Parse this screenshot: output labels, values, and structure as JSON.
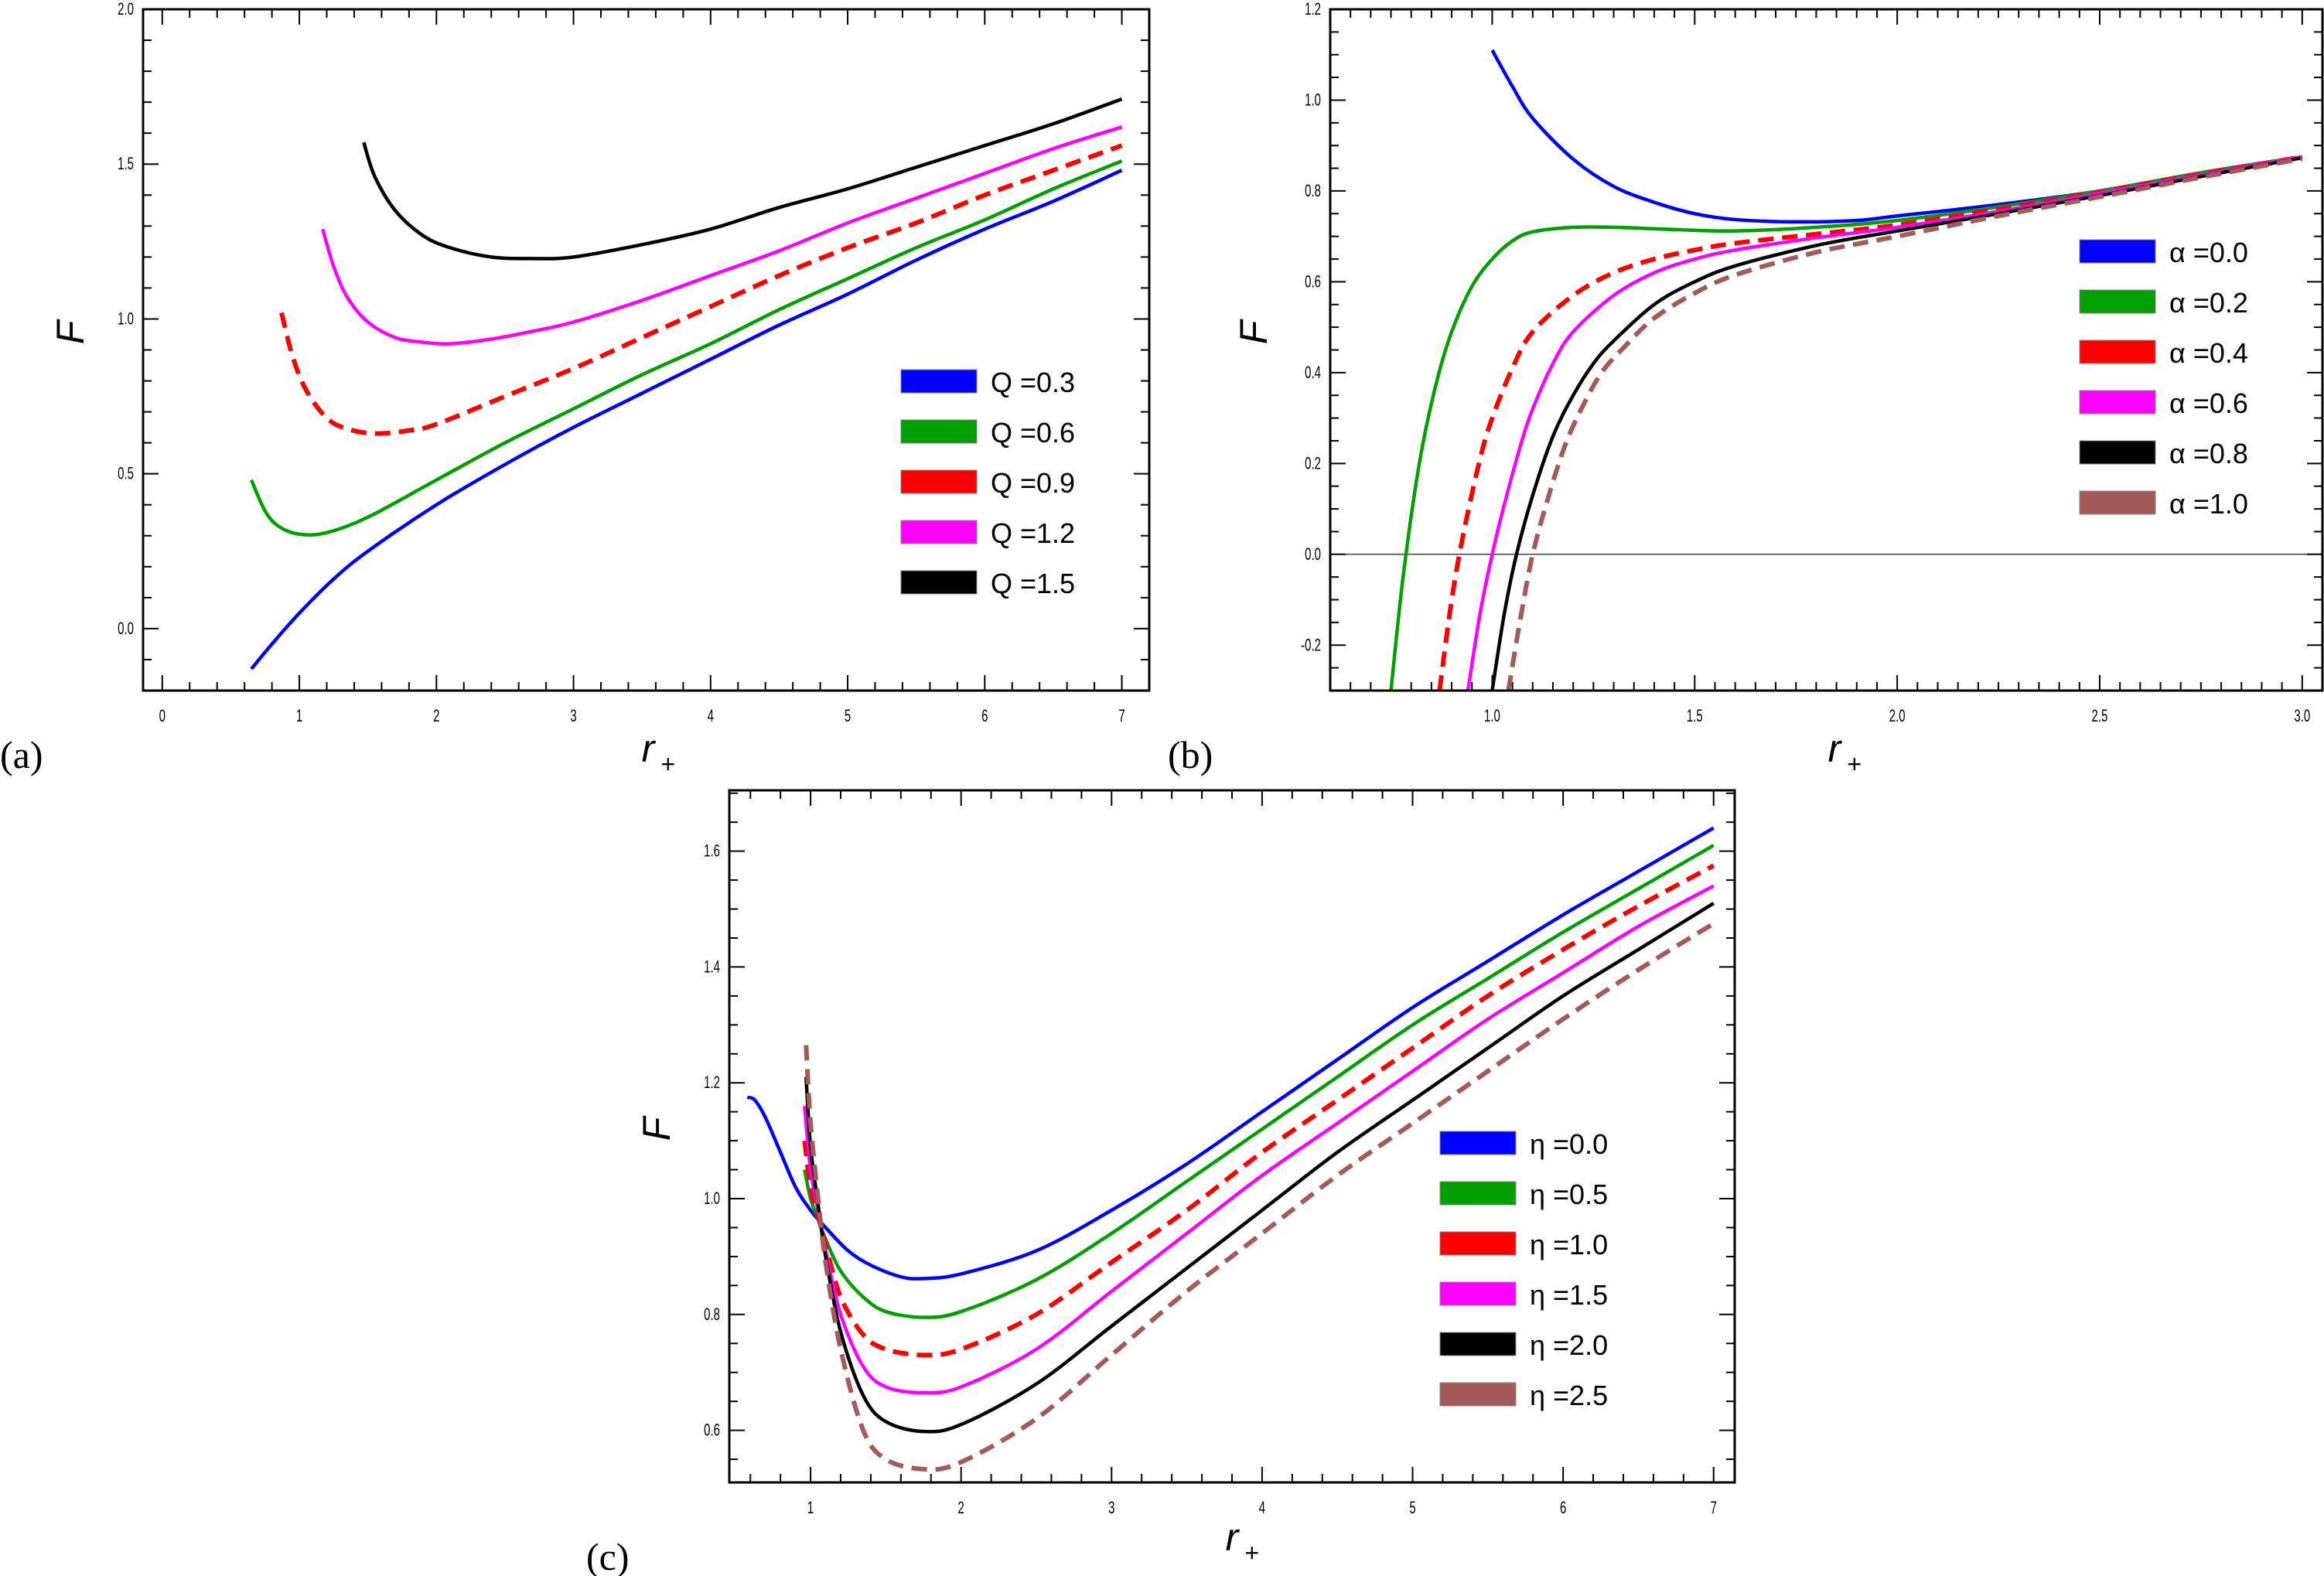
{
  "chart_data": [
    {
      "id": "a",
      "panel_label": "(a)",
      "type": "line",
      "xlabel": "r+",
      "ylabel": "F",
      "xlim": [
        -0.14,
        7.2
      ],
      "ylim": [
        -0.2,
        2.0
      ],
      "xticks": [
        0,
        1,
        2,
        3,
        4,
        5,
        6,
        7
      ],
      "xtick_labels": [
        "0",
        "1",
        "2",
        "3",
        "4",
        "5",
        "6",
        "7"
      ],
      "yticks": [
        0.0,
        0.5,
        1.0,
        1.5,
        2.0
      ],
      "ytick_labels": [
        "0.0",
        "0.5",
        "1.0",
        "1.5",
        "2.0"
      ],
      "legend_position": "center-right",
      "series": [
        {
          "name": "Q =0.3",
          "color": "#0000ff",
          "dashed": false,
          "x": [
            0.65,
            0.8,
            1.0,
            1.25,
            1.5,
            2.0,
            2.5,
            3.0,
            3.5,
            4.0,
            4.5,
            5.0,
            5.5,
            6.0,
            6.5,
            7.0
          ],
          "y": [
            -0.13,
            -0.05,
            0.05,
            0.16,
            0.25,
            0.4,
            0.53,
            0.65,
            0.76,
            0.87,
            0.98,
            1.08,
            1.19,
            1.29,
            1.38,
            1.48
          ]
        },
        {
          "name": "Q =0.6",
          "color": "#00a000",
          "dashed": false,
          "x": [
            0.65,
            0.75,
            0.85,
            1.0,
            1.2,
            1.5,
            2.0,
            2.5,
            3.0,
            3.5,
            4.0,
            4.5,
            5.0,
            5.5,
            6.0,
            6.5,
            7.0
          ],
          "y": [
            0.48,
            0.38,
            0.33,
            0.305,
            0.31,
            0.36,
            0.48,
            0.6,
            0.71,
            0.82,
            0.92,
            1.03,
            1.13,
            1.23,
            1.32,
            1.42,
            1.51
          ]
        },
        {
          "name": "Q =0.9",
          "color": "#ff0000",
          "dashed": true,
          "x": [
            0.87,
            0.95,
            1.05,
            1.2,
            1.35,
            1.55,
            1.8,
            2.0,
            2.5,
            3.0,
            3.5,
            4.0,
            4.5,
            5.0,
            5.5,
            6.0,
            6.5,
            7.0
          ],
          "y": [
            1.02,
            0.88,
            0.77,
            0.68,
            0.645,
            0.63,
            0.64,
            0.66,
            0.75,
            0.84,
            0.94,
            1.04,
            1.14,
            1.23,
            1.31,
            1.4,
            1.48,
            1.56
          ]
        },
        {
          "name": "Q =1.2",
          "color": "#ff00ff",
          "dashed": false,
          "x": [
            1.17,
            1.25,
            1.35,
            1.5,
            1.7,
            1.9,
            2.1,
            2.4,
            2.7,
            3.0,
            3.5,
            4.0,
            4.5,
            5.0,
            5.5,
            6.0,
            6.5,
            7.0
          ],
          "y": [
            1.29,
            1.17,
            1.07,
            0.99,
            0.94,
            0.925,
            0.92,
            0.935,
            0.96,
            0.99,
            1.06,
            1.14,
            1.22,
            1.31,
            1.39,
            1.47,
            1.55,
            1.62
          ]
        },
        {
          "name": "Q =1.5",
          "color": "#000000",
          "dashed": false,
          "x": [
            1.47,
            1.55,
            1.7,
            1.9,
            2.1,
            2.4,
            2.7,
            3.0,
            3.5,
            4.0,
            4.5,
            5.0,
            5.5,
            6.0,
            6.5,
            7.0
          ],
          "y": [
            1.57,
            1.46,
            1.35,
            1.27,
            1.23,
            1.2,
            1.195,
            1.2,
            1.24,
            1.29,
            1.36,
            1.42,
            1.49,
            1.56,
            1.63,
            1.71
          ]
        }
      ]
    },
    {
      "id": "b",
      "panel_label": "(b)",
      "type": "line",
      "xlabel": "r+",
      "ylabel": "F",
      "xlim": [
        0.6,
        3.05
      ],
      "ylim": [
        -0.3,
        1.2
      ],
      "xticks": [
        1.0,
        1.5,
        2.0,
        2.5,
        3.0
      ],
      "xtick_labels": [
        "1.0",
        "1.5",
        "2.0",
        "2.5",
        "3.0"
      ],
      "yticks": [
        -0.2,
        0.0,
        0.2,
        0.4,
        0.6,
        0.8,
        1.0,
        1.2
      ],
      "ytick_labels": [
        "-0.2",
        "0.0",
        "0.2",
        "0.4",
        "0.6",
        "0.8",
        "1.0",
        "1.2"
      ],
      "zero_line": true,
      "legend_position": "center-right",
      "series": [
        {
          "name": "α =0.0",
          "color": "#0000ff",
          "dashed": false,
          "x": [
            1.0,
            1.05,
            1.1,
            1.2,
            1.3,
            1.4,
            1.5,
            1.6,
            1.75,
            1.9,
            2.0,
            2.25,
            2.5,
            2.75,
            3.0
          ],
          "y": [
            1.11,
            1.03,
            0.96,
            0.87,
            0.81,
            0.775,
            0.75,
            0.737,
            0.732,
            0.735,
            0.745,
            0.77,
            0.8,
            0.84,
            0.875
          ]
        },
        {
          "name": "α =0.2",
          "color": "#00a000",
          "dashed": false,
          "x": [
            0.75,
            0.78,
            0.82,
            0.86,
            0.9,
            0.95,
            1.0,
            1.05,
            1.1,
            1.2,
            1.3,
            1.45,
            1.6,
            1.8,
            2.0,
            2.25,
            2.5,
            2.75,
            3.0
          ],
          "y": [
            -0.3,
            -0.05,
            0.2,
            0.37,
            0.49,
            0.59,
            0.65,
            0.69,
            0.71,
            0.72,
            0.72,
            0.715,
            0.712,
            0.72,
            0.735,
            0.765,
            0.8,
            0.84,
            0.875
          ]
        },
        {
          "name": "α =0.4",
          "color": "#ff0000",
          "dashed": true,
          "x": [
            0.87,
            0.9,
            0.93,
            0.97,
            1.0,
            1.05,
            1.1,
            1.2,
            1.3,
            1.4,
            1.5,
            1.6,
            1.8,
            2.0,
            2.25,
            2.5,
            2.75,
            3.0
          ],
          "y": [
            -0.3,
            -0.1,
            0.05,
            0.21,
            0.3,
            0.41,
            0.49,
            0.57,
            0.62,
            0.65,
            0.67,
            0.685,
            0.705,
            0.725,
            0.76,
            0.797,
            0.837,
            0.875
          ]
        },
        {
          "name": "α =0.6",
          "color": "#ff00ff",
          "dashed": false,
          "x": [
            0.94,
            0.97,
            1.0,
            1.03,
            1.07,
            1.1,
            1.15,
            1.2,
            1.3,
            1.4,
            1.5,
            1.6,
            1.8,
            2.0,
            2.25,
            2.5,
            2.75,
            3.0
          ],
          "y": [
            -0.3,
            -0.13,
            0.0,
            0.11,
            0.24,
            0.32,
            0.42,
            0.49,
            0.57,
            0.62,
            0.65,
            0.67,
            0.697,
            0.72,
            0.755,
            0.795,
            0.835,
            0.875
          ]
        },
        {
          "name": "α =0.8",
          "color": "#000000",
          "dashed": false,
          "x": [
            1.0,
            1.03,
            1.06,
            1.1,
            1.15,
            1.2,
            1.25,
            1.3,
            1.4,
            1.5,
            1.6,
            1.8,
            2.0,
            2.25,
            2.5,
            2.75,
            3.0
          ],
          "y": [
            -0.3,
            -0.13,
            0.0,
            0.13,
            0.26,
            0.35,
            0.42,
            0.47,
            0.55,
            0.6,
            0.635,
            0.68,
            0.712,
            0.75,
            0.79,
            0.832,
            0.873
          ]
        },
        {
          "name": "α =1.0",
          "color": "#a55a5a",
          "dashed": true,
          "x": [
            1.04,
            1.07,
            1.1,
            1.14,
            1.18,
            1.22,
            1.27,
            1.33,
            1.4,
            1.5,
            1.6,
            1.8,
            2.0,
            2.25,
            2.5,
            2.75,
            3.0
          ],
          "y": [
            -0.3,
            -0.14,
            0.0,
            0.13,
            0.24,
            0.32,
            0.4,
            0.46,
            0.52,
            0.575,
            0.615,
            0.665,
            0.7,
            0.745,
            0.787,
            0.83,
            0.871
          ]
        }
      ]
    },
    {
      "id": "c",
      "panel_label": "(c)",
      "type": "line",
      "xlabel": "r+",
      "ylabel": "F",
      "xlim": [
        0.46,
        7.14
      ],
      "ylim": [
        0.51,
        1.705
      ],
      "xticks": [
        1,
        2,
        3,
        4,
        5,
        6,
        7
      ],
      "xtick_labels": [
        "1",
        "2",
        "3",
        "4",
        "5",
        "6",
        "7"
      ],
      "yticks": [
        0.6,
        0.8,
        1.0,
        1.2,
        1.4,
        1.6
      ],
      "ytick_labels": [
        "0.6",
        "0.8",
        "1.0",
        "1.2",
        "1.4",
        "1.6"
      ],
      "legend_position": "center-right",
      "series": [
        {
          "name": "η =0.0",
          "color": "#0000ff",
          "dashed": false,
          "x": [
            0.58,
            0.63,
            0.7,
            0.8,
            0.9,
            1.0,
            1.1,
            1.25,
            1.4,
            1.6,
            1.75,
            2.0,
            2.5,
            3.0,
            3.5,
            4.0,
            4.5,
            5.0,
            5.5,
            6.0,
            6.5,
            7.0
          ],
          "y": [
            1.175,
            1.17,
            1.14,
            1.08,
            1.02,
            0.98,
            0.95,
            0.91,
            0.885,
            0.865,
            0.862,
            0.87,
            0.91,
            0.98,
            1.06,
            1.15,
            1.24,
            1.33,
            1.41,
            1.49,
            1.565,
            1.64
          ]
        },
        {
          "name": "η =0.5",
          "color": "#00a000",
          "dashed": false,
          "x": [
            0.96,
            1.0,
            1.05,
            1.1,
            1.2,
            1.35,
            1.5,
            1.75,
            2.0,
            2.5,
            3.0,
            3.5,
            4.0,
            4.5,
            5.0,
            5.5,
            6.0,
            6.5,
            7.0
          ],
          "y": [
            1.05,
            1.0,
            0.965,
            0.93,
            0.875,
            0.83,
            0.805,
            0.795,
            0.805,
            0.86,
            0.94,
            1.03,
            1.12,
            1.21,
            1.3,
            1.38,
            1.46,
            1.535,
            1.61
          ]
        },
        {
          "name": "η =1.0",
          "color": "#ff0000",
          "dashed": true,
          "x": [
            0.96,
            1.0,
            1.05,
            1.1,
            1.2,
            1.35,
            1.5,
            1.75,
            2.0,
            2.5,
            3.0,
            3.5,
            4.0,
            4.5,
            5.0,
            5.5,
            6.0,
            6.5,
            7.0
          ],
          "y": [
            1.1,
            1.02,
            0.97,
            0.92,
            0.83,
            0.765,
            0.74,
            0.73,
            0.74,
            0.8,
            0.89,
            0.98,
            1.08,
            1.17,
            1.26,
            1.35,
            1.43,
            1.505,
            1.575
          ]
        },
        {
          "name": "η =1.5",
          "color": "#ff00ff",
          "dashed": false,
          "x": [
            0.96,
            1.0,
            1.05,
            1.1,
            1.2,
            1.35,
            1.5,
            1.75,
            2.0,
            2.5,
            3.0,
            3.5,
            4.0,
            4.5,
            5.0,
            5.5,
            6.0,
            6.5,
            7.0
          ],
          "y": [
            1.16,
            1.05,
            0.98,
            0.91,
            0.8,
            0.71,
            0.675,
            0.665,
            0.675,
            0.74,
            0.84,
            0.94,
            1.04,
            1.13,
            1.22,
            1.31,
            1.39,
            1.47,
            1.54
          ]
        },
        {
          "name": "η =2.0",
          "color": "#000000",
          "dashed": false,
          "x": [
            0.97,
            1.0,
            1.05,
            1.1,
            1.2,
            1.35,
            1.5,
            1.75,
            2.0,
            2.5,
            3.0,
            3.5,
            4.0,
            4.5,
            5.0,
            5.5,
            6.0,
            6.5,
            7.0
          ],
          "y": [
            1.21,
            1.09,
            0.99,
            0.9,
            0.77,
            0.66,
            0.615,
            0.598,
            0.61,
            0.68,
            0.78,
            0.88,
            0.98,
            1.08,
            1.17,
            1.26,
            1.35,
            1.43,
            1.51
          ]
        },
        {
          "name": "η =2.5",
          "color": "#a55a5a",
          "dashed": true,
          "x": [
            0.97,
            1.0,
            1.05,
            1.1,
            1.2,
            1.35,
            1.5,
            1.75,
            2.0,
            2.5,
            3.0,
            3.5,
            4.0,
            4.5,
            5.0,
            5.5,
            6.0,
            6.5,
            7.0
          ],
          "y": [
            1.265,
            1.13,
            1.0,
            0.89,
            0.74,
            0.6,
            0.55,
            0.533,
            0.545,
            0.62,
            0.73,
            0.84,
            0.94,
            1.04,
            1.13,
            1.22,
            1.31,
            1.395,
            1.475
          ]
        }
      ]
    }
  ]
}
